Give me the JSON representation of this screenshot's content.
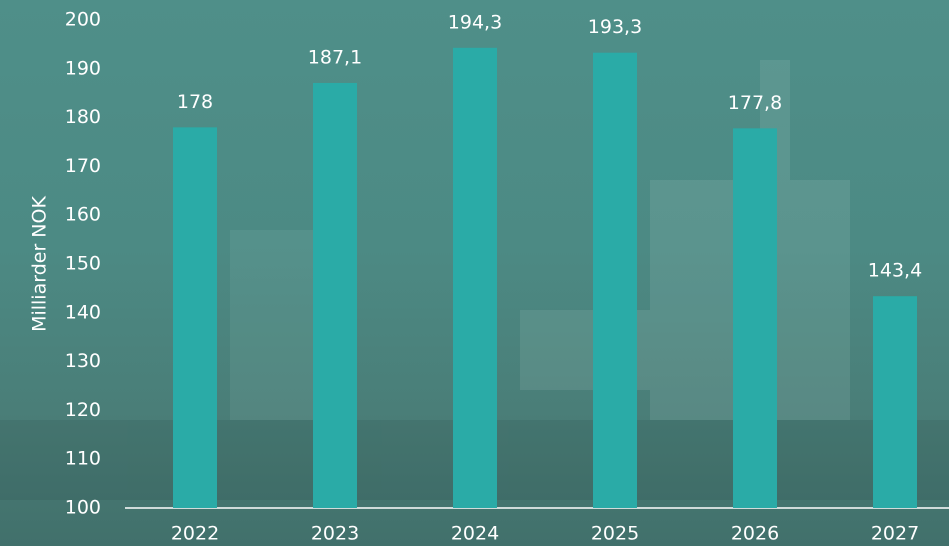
{
  "chart_data": {
    "type": "bar",
    "y_label": "Milliarder NOK",
    "categories": [
      "2022",
      "2023",
      "2024",
      "2025",
      "2026",
      "2027"
    ],
    "values": [
      178,
      187.1,
      194.3,
      193.3,
      177.8,
      143.4
    ],
    "value_labels": [
      "178",
      "187,1",
      "194,3",
      "193,3",
      "177,8",
      "143,4"
    ],
    "color": "#2aaba7",
    "ylim": [
      100,
      200
    ],
    "yticks": [
      100,
      110,
      120,
      130,
      140,
      150,
      160,
      170,
      180,
      190,
      200
    ],
    "grid": false
  }
}
